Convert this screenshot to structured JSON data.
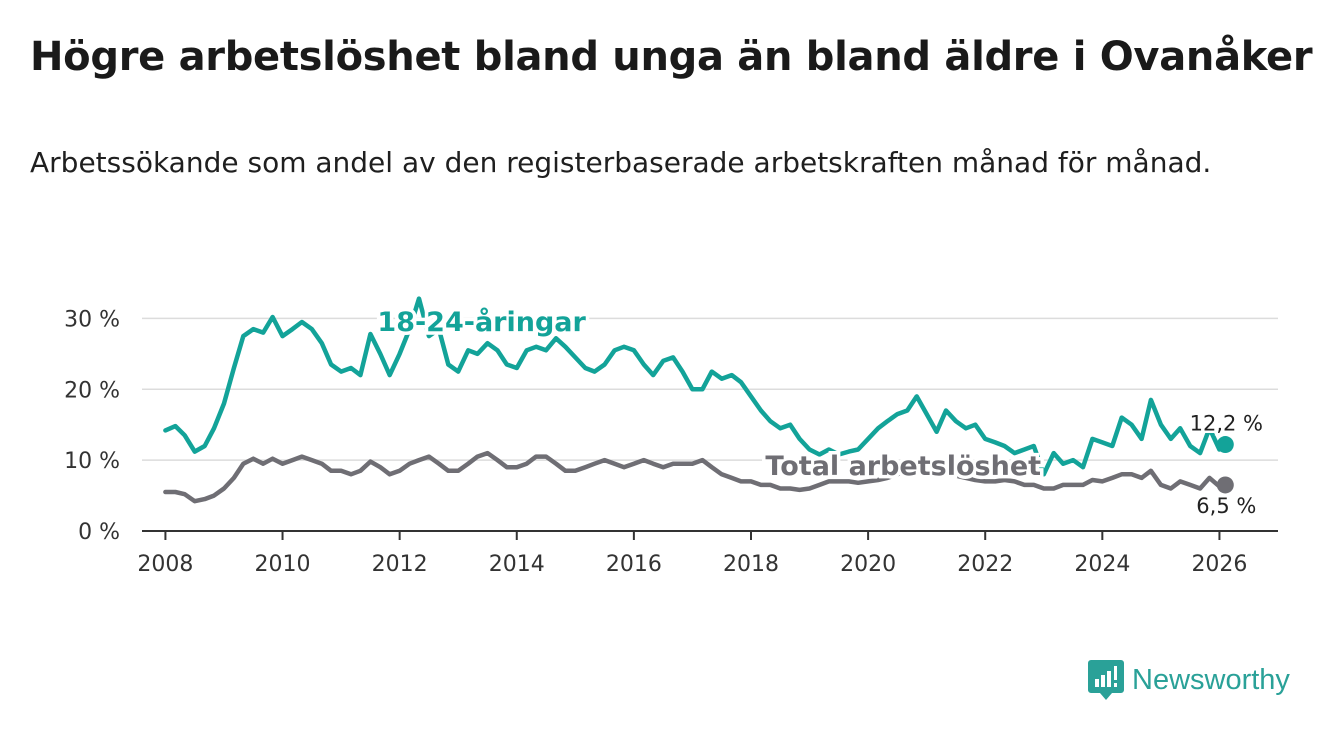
{
  "title": "Högre arbetslöshet bland unga än bland äldre i Ovanåker",
  "subtitle": "Arbetssökande som andel av den registerbaserade arbetskraften månad för månad.",
  "brand": {
    "name": "Newsworthy",
    "icon": "newsworthy-logo-icon",
    "color": "#2aa198"
  },
  "chart_data": {
    "type": "line",
    "title": "Högre arbetslöshet bland unga än bland äldre i Ovanåker",
    "xlabel": "",
    "ylabel": "",
    "xlim": [
      2007.6,
      2027.0
    ],
    "ylim": [
      0,
      35
    ],
    "grid": true,
    "y_ticks": [
      0,
      10,
      20,
      30
    ],
    "y_tick_labels": [
      "0 %",
      "10 %",
      "20 %",
      "30 %"
    ],
    "x_ticks": [
      2008,
      2010,
      2012,
      2014,
      2016,
      2018,
      2020,
      2022,
      2024,
      2026
    ],
    "x_tick_labels": [
      "2008",
      "2010",
      "2012",
      "2014",
      "2016",
      "2018",
      "2020",
      "2022",
      "2024",
      "2026"
    ],
    "series": [
      {
        "name": "18-24-åringar",
        "color": "#13a399",
        "label_at": [
          2013.4,
          28.2
        ],
        "end_label": "12,2 %",
        "points": [
          [
            2008.0,
            14.2
          ],
          [
            2008.17,
            14.8
          ],
          [
            2008.33,
            13.5
          ],
          [
            2008.5,
            11.2
          ],
          [
            2008.67,
            12.0
          ],
          [
            2008.83,
            14.5
          ],
          [
            2009.0,
            18.0
          ],
          [
            2009.17,
            23.0
          ],
          [
            2009.33,
            27.5
          ],
          [
            2009.5,
            28.5
          ],
          [
            2009.67,
            28.0
          ],
          [
            2009.83,
            30.2
          ],
          [
            2010.0,
            27.5
          ],
          [
            2010.17,
            28.5
          ],
          [
            2010.33,
            29.5
          ],
          [
            2010.5,
            28.5
          ],
          [
            2010.67,
            26.5
          ],
          [
            2010.83,
            23.5
          ],
          [
            2011.0,
            22.5
          ],
          [
            2011.17,
            23.0
          ],
          [
            2011.33,
            22.0
          ],
          [
            2011.5,
            27.8
          ],
          [
            2011.67,
            25.0
          ],
          [
            2011.83,
            22.0
          ],
          [
            2012.0,
            25.0
          ],
          [
            2012.17,
            28.5
          ],
          [
            2012.33,
            32.8
          ],
          [
            2012.5,
            27.5
          ],
          [
            2012.67,
            28.5
          ],
          [
            2012.83,
            23.5
          ],
          [
            2013.0,
            22.5
          ],
          [
            2013.17,
            25.5
          ],
          [
            2013.33,
            25.0
          ],
          [
            2013.5,
            26.5
          ],
          [
            2013.67,
            25.5
          ],
          [
            2013.83,
            23.5
          ],
          [
            2014.0,
            23.0
          ],
          [
            2014.17,
            25.5
          ],
          [
            2014.33,
            26.0
          ],
          [
            2014.5,
            25.5
          ],
          [
            2014.67,
            27.2
          ],
          [
            2014.83,
            26.0
          ],
          [
            2015.0,
            24.5
          ],
          [
            2015.17,
            23.0
          ],
          [
            2015.33,
            22.5
          ],
          [
            2015.5,
            23.5
          ],
          [
            2015.67,
            25.5
          ],
          [
            2015.83,
            26.0
          ],
          [
            2016.0,
            25.5
          ],
          [
            2016.17,
            23.5
          ],
          [
            2016.33,
            22.0
          ],
          [
            2016.5,
            24.0
          ],
          [
            2016.67,
            24.5
          ],
          [
            2016.83,
            22.5
          ],
          [
            2017.0,
            20.0
          ],
          [
            2017.17,
            20.0
          ],
          [
            2017.33,
            22.5
          ],
          [
            2017.5,
            21.5
          ],
          [
            2017.67,
            22.0
          ],
          [
            2017.83,
            21.0
          ],
          [
            2018.0,
            19.0
          ],
          [
            2018.17,
            17.0
          ],
          [
            2018.33,
            15.5
          ],
          [
            2018.5,
            14.5
          ],
          [
            2018.67,
            15.0
          ],
          [
            2018.83,
            13.0
          ],
          [
            2019.0,
            11.5
          ],
          [
            2019.17,
            10.8
          ],
          [
            2019.33,
            11.5
          ],
          [
            2019.5,
            10.8
          ],
          [
            2019.67,
            11.2
          ],
          [
            2019.83,
            11.5
          ],
          [
            2020.0,
            13.0
          ],
          [
            2020.17,
            14.5
          ],
          [
            2020.33,
            15.5
          ],
          [
            2020.5,
            16.5
          ],
          [
            2020.67,
            17.0
          ],
          [
            2020.83,
            19.0
          ],
          [
            2021.0,
            16.5
          ],
          [
            2021.17,
            14.0
          ],
          [
            2021.33,
            17.0
          ],
          [
            2021.5,
            15.5
          ],
          [
            2021.67,
            14.5
          ],
          [
            2021.83,
            15.0
          ],
          [
            2022.0,
            13.0
          ],
          [
            2022.17,
            12.5
          ],
          [
            2022.33,
            12.0
          ],
          [
            2022.5,
            11.0
          ],
          [
            2022.67,
            11.5
          ],
          [
            2022.83,
            12.0
          ],
          [
            2023.0,
            8.0
          ],
          [
            2023.17,
            11.0
          ],
          [
            2023.33,
            9.5
          ],
          [
            2023.5,
            10.0
          ],
          [
            2023.67,
            9.0
          ],
          [
            2023.83,
            13.0
          ],
          [
            2024.0,
            12.5
          ],
          [
            2024.17,
            12.0
          ],
          [
            2024.33,
            16.0
          ],
          [
            2024.5,
            15.0
          ],
          [
            2024.67,
            13.0
          ],
          [
            2024.83,
            18.5
          ],
          [
            2025.0,
            15.0
          ],
          [
            2025.17,
            13.0
          ],
          [
            2025.33,
            14.5
          ],
          [
            2025.5,
            12.0
          ],
          [
            2025.67,
            11.0
          ],
          [
            2025.83,
            14.5
          ],
          [
            2026.0,
            11.5
          ],
          [
            2026.1,
            12.2
          ]
        ]
      },
      {
        "name": "Total arbetslöshet",
        "color": "#6f6e74",
        "label_at": [
          2020.6,
          7.9
        ],
        "end_label": "6,5 %",
        "points": [
          [
            2008.0,
            5.5
          ],
          [
            2008.17,
            5.5
          ],
          [
            2008.33,
            5.2
          ],
          [
            2008.5,
            4.2
          ],
          [
            2008.67,
            4.5
          ],
          [
            2008.83,
            5.0
          ],
          [
            2009.0,
            6.0
          ],
          [
            2009.17,
            7.5
          ],
          [
            2009.33,
            9.5
          ],
          [
            2009.5,
            10.2
          ],
          [
            2009.67,
            9.5
          ],
          [
            2009.83,
            10.2
          ],
          [
            2010.0,
            9.5
          ],
          [
            2010.17,
            10.0
          ],
          [
            2010.33,
            10.5
          ],
          [
            2010.5,
            10.0
          ],
          [
            2010.67,
            9.5
          ],
          [
            2010.83,
            8.5
          ],
          [
            2011.0,
            8.5
          ],
          [
            2011.17,
            8.0
          ],
          [
            2011.33,
            8.5
          ],
          [
            2011.5,
            9.8
          ],
          [
            2011.67,
            9.0
          ],
          [
            2011.83,
            8.0
          ],
          [
            2012.0,
            8.5
          ],
          [
            2012.17,
            9.5
          ],
          [
            2012.33,
            10.0
          ],
          [
            2012.5,
            10.5
          ],
          [
            2012.67,
            9.5
          ],
          [
            2012.83,
            8.5
          ],
          [
            2013.0,
            8.5
          ],
          [
            2013.17,
            9.5
          ],
          [
            2013.33,
            10.5
          ],
          [
            2013.5,
            11.0
          ],
          [
            2013.67,
            10.0
          ],
          [
            2013.83,
            9.0
          ],
          [
            2014.0,
            9.0
          ],
          [
            2014.17,
            9.5
          ],
          [
            2014.33,
            10.5
          ],
          [
            2014.5,
            10.5
          ],
          [
            2014.67,
            9.5
          ],
          [
            2014.83,
            8.5
          ],
          [
            2015.0,
            8.5
          ],
          [
            2015.17,
            9.0
          ],
          [
            2015.33,
            9.5
          ],
          [
            2015.5,
            10.0
          ],
          [
            2015.67,
            9.5
          ],
          [
            2015.83,
            9.0
          ],
          [
            2016.0,
            9.5
          ],
          [
            2016.17,
            10.0
          ],
          [
            2016.33,
            9.5
          ],
          [
            2016.5,
            9.0
          ],
          [
            2016.67,
            9.5
          ],
          [
            2016.83,
            9.5
          ],
          [
            2017.0,
            9.5
          ],
          [
            2017.17,
            10.0
          ],
          [
            2017.33,
            9.0
          ],
          [
            2017.5,
            8.0
          ],
          [
            2017.67,
            7.5
          ],
          [
            2017.83,
            7.0
          ],
          [
            2018.0,
            7.0
          ],
          [
            2018.17,
            6.5
          ],
          [
            2018.33,
            6.5
          ],
          [
            2018.5,
            6.0
          ],
          [
            2018.67,
            6.0
          ],
          [
            2018.83,
            5.8
          ],
          [
            2019.0,
            6.0
          ],
          [
            2019.17,
            6.5
          ],
          [
            2019.33,
            7.0
          ],
          [
            2019.5,
            7.0
          ],
          [
            2019.67,
            7.0
          ],
          [
            2019.83,
            6.8
          ],
          [
            2020.0,
            7.0
          ],
          [
            2020.17,
            7.2
          ],
          [
            2020.33,
            7.5
          ],
          [
            2020.5,
            8.0
          ],
          [
            2020.67,
            8.5
          ],
          [
            2020.83,
            8.8
          ],
          [
            2021.0,
            8.5
          ],
          [
            2021.17,
            8.0
          ],
          [
            2021.33,
            8.0
          ],
          [
            2021.5,
            7.8
          ],
          [
            2021.67,
            7.5
          ],
          [
            2021.83,
            7.2
          ],
          [
            2022.0,
            7.0
          ],
          [
            2022.17,
            7.0
          ],
          [
            2022.33,
            7.2
          ],
          [
            2022.5,
            7.0
          ],
          [
            2022.67,
            6.5
          ],
          [
            2022.83,
            6.5
          ],
          [
            2023.0,
            6.0
          ],
          [
            2023.17,
            6.0
          ],
          [
            2023.33,
            6.5
          ],
          [
            2023.5,
            6.5
          ],
          [
            2023.67,
            6.5
          ],
          [
            2023.83,
            7.2
          ],
          [
            2024.0,
            7.0
          ],
          [
            2024.17,
            7.5
          ],
          [
            2024.33,
            8.0
          ],
          [
            2024.5,
            8.0
          ],
          [
            2024.67,
            7.5
          ],
          [
            2024.83,
            8.5
          ],
          [
            2025.0,
            6.5
          ],
          [
            2025.17,
            6.0
          ],
          [
            2025.33,
            7.0
          ],
          [
            2025.5,
            6.5
          ],
          [
            2025.67,
            6.0
          ],
          [
            2025.83,
            7.5
          ],
          [
            2026.0,
            6.3
          ],
          [
            2026.1,
            6.5
          ]
        ]
      }
    ]
  }
}
